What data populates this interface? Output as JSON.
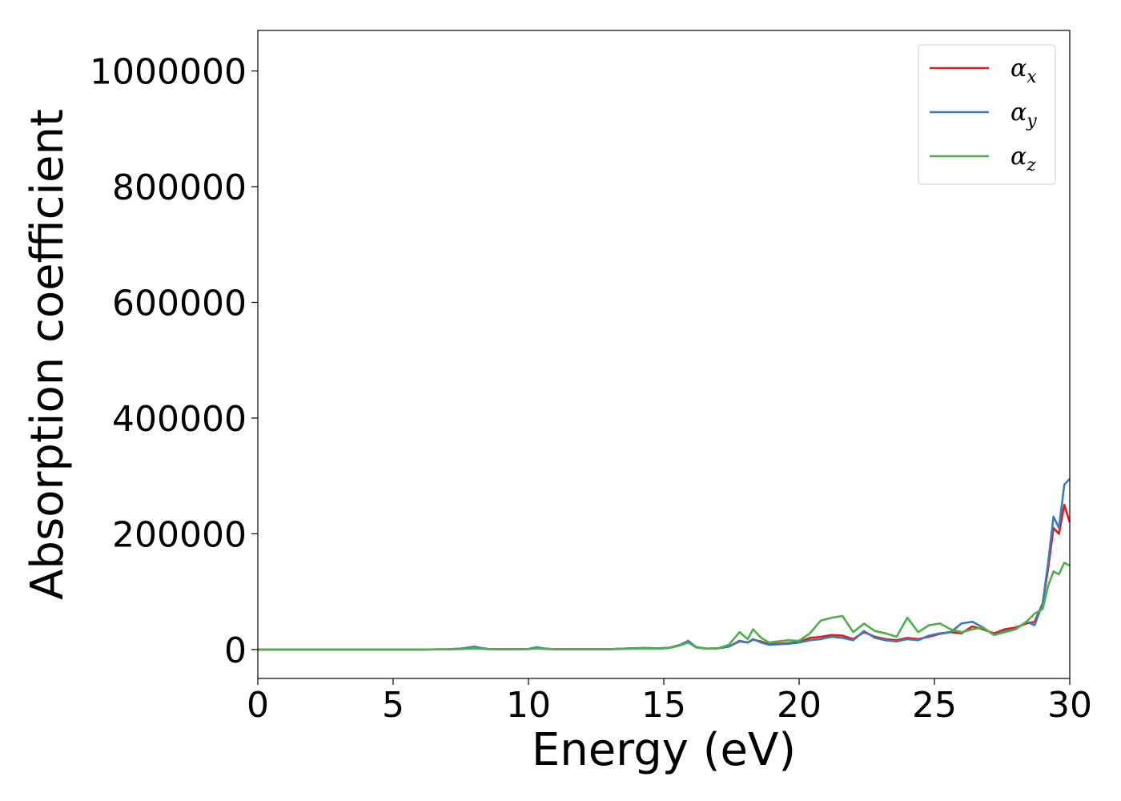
{
  "chart_data": {
    "type": "line",
    "xlabel": "Energy (eV)",
    "ylabel": "Absorption coefficient",
    "xlim": [
      0,
      30
    ],
    "ylim": [
      -50000,
      1070000
    ],
    "xticks": [
      0,
      5,
      10,
      15,
      20,
      25,
      30
    ],
    "xtick_labels": [
      "0",
      "5",
      "10",
      "15",
      "20",
      "25",
      "30"
    ],
    "yticks": [
      0,
      200000,
      400000,
      600000,
      800000,
      1000000
    ],
    "ytick_labels": [
      "0",
      "200000",
      "400000",
      "600000",
      "800000",
      "1000000"
    ],
    "grid": false,
    "legend_position": "top-right",
    "colors": {
      "alpha_x": "#e41a1c",
      "alpha_y": "#377eb8",
      "alpha_z": "#4daf4a"
    },
    "x": [
      0,
      1,
      2,
      3,
      4,
      5,
      6,
      7,
      7.5,
      8,
      8.2,
      8.5,
      9,
      9.5,
      10,
      10.3,
      10.6,
      11,
      12,
      13,
      13.8,
      14.3,
      14.8,
      15.2,
      15.6,
      15.9,
      16.2,
      16.6,
      17,
      17.4,
      17.8,
      18.1,
      18.3,
      18.6,
      18.9,
      19.2,
      19.6,
      20,
      20.4,
      20.8,
      21.2,
      21.6,
      22,
      22.4,
      22.8,
      23.2,
      23.6,
      24,
      24.4,
      24.8,
      25.2,
      25.6,
      26,
      26.4,
      26.8,
      27.2,
      27.6,
      28,
      28.4,
      28.7,
      29,
      29.2,
      29.4,
      29.6,
      29.8,
      30
    ],
    "series": [
      {
        "name": "α_x",
        "label_main": "α",
        "label_sub": "x",
        "values": [
          0,
          0,
          0,
          0,
          0,
          0,
          0,
          500,
          1500,
          4000,
          2500,
          1000,
          500,
          500,
          1000,
          3500,
          1500,
          500,
          500,
          500,
          2000,
          2500,
          2000,
          3000,
          8000,
          14000,
          4000,
          1500,
          2000,
          5000,
          15000,
          12000,
          17000,
          14000,
          9000,
          10000,
          11000,
          13000,
          20000,
          22000,
          25000,
          24000,
          18000,
          30000,
          22000,
          18000,
          16000,
          20000,
          18000,
          22000,
          27000,
          30000,
          28000,
          40000,
          35000,
          28000,
          35000,
          38000,
          45000,
          48000,
          80000,
          140000,
          210000,
          200000,
          250000,
          220000
        ]
      },
      {
        "name": "α_y",
        "label_main": "α",
        "label_sub": "y",
        "values": [
          0,
          0,
          0,
          0,
          0,
          0,
          0,
          500,
          1500,
          5000,
          3000,
          1000,
          500,
          500,
          1000,
          4000,
          1500,
          500,
          500,
          500,
          2000,
          2500,
          2000,
          3000,
          8000,
          15000,
          4000,
          1500,
          2000,
          5000,
          14000,
          12000,
          18000,
          12000,
          8000,
          9000,
          10000,
          12000,
          16000,
          18000,
          22000,
          20000,
          16000,
          32000,
          20000,
          16000,
          14000,
          18000,
          16000,
          24000,
          28000,
          30000,
          45000,
          48000,
          38000,
          25000,
          32000,
          35000,
          48000,
          42000,
          80000,
          150000,
          230000,
          210000,
          285000,
          295000
        ]
      },
      {
        "name": "α_z",
        "label_main": "α",
        "label_sub": "z",
        "values": [
          0,
          0,
          0,
          0,
          0,
          0,
          0,
          300,
          800,
          2000,
          1500,
          700,
          400,
          400,
          700,
          2000,
          1000,
          400,
          400,
          400,
          1500,
          2000,
          1500,
          2500,
          7000,
          12000,
          3500,
          1500,
          2000,
          8000,
          30000,
          18000,
          35000,
          20000,
          12000,
          14000,
          16000,
          15000,
          28000,
          50000,
          55000,
          58000,
          30000,
          45000,
          32000,
          28000,
          22000,
          55000,
          30000,
          42000,
          45000,
          35000,
          30000,
          35000,
          38000,
          25000,
          30000,
          35000,
          48000,
          62000,
          70000,
          110000,
          135000,
          130000,
          150000,
          145000
        ]
      }
    ]
  }
}
